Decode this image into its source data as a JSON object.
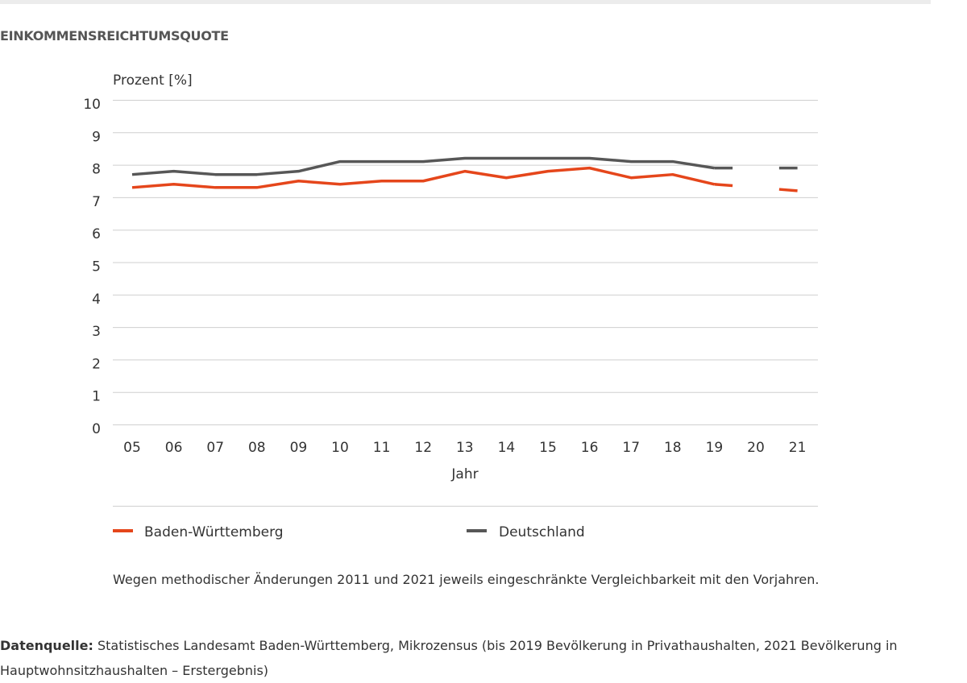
{
  "title": "EINKOMMENSREICHTUMSQUOTE",
  "note": "Wegen methodischer Änderungen 2011 und 2021 jeweils eingeschränkte Vergleichbarkeit mit den Vorjahren.",
  "source": {
    "label": "Datenquelle:",
    "text": " Statistisches Landesamt Baden-Württemberg, Mikrozensus (bis 2019 Bevölkerung in Privathaushalten, 2021 Bevölkerung in Hauptwohnsitzhaushalten – Erstergebnis)"
  },
  "chart_data": {
    "type": "line",
    "title": "EINKOMMENSREICHTUMSQUOTE",
    "xlabel": "Jahr",
    "ylabel": "Prozent [%]",
    "ylim": [
      0,
      10
    ],
    "yticks": [
      "0",
      "1",
      "2",
      "3",
      "4",
      "5",
      "6",
      "7",
      "8",
      "9",
      "10"
    ],
    "categories": [
      "05",
      "06",
      "07",
      "08",
      "09",
      "10",
      "11",
      "12",
      "13",
      "14",
      "15",
      "16",
      "17",
      "18",
      "19",
      "20",
      "21"
    ],
    "grid": true,
    "legend": "bottom",
    "series": [
      {
        "name": "Baden-Württemberg",
        "color": "#e5461b",
        "values": [
          7.3,
          7.4,
          7.3,
          7.3,
          7.5,
          7.4,
          7.5,
          7.5,
          7.8,
          7.6,
          7.8,
          7.9,
          7.6,
          7.7,
          7.4,
          null,
          7.2
        ]
      },
      {
        "name": "Deutschland",
        "color": "#575757",
        "values": [
          7.7,
          7.8,
          7.7,
          7.7,
          7.8,
          8.1,
          8.1,
          8.1,
          8.2,
          8.2,
          8.2,
          8.2,
          8.1,
          8.1,
          7.9,
          null,
          7.9
        ]
      }
    ]
  }
}
